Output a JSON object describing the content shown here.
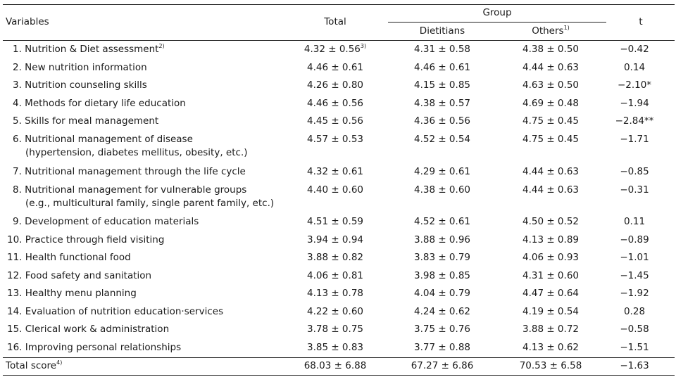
{
  "header": {
    "variables": "Variables",
    "total": "Total",
    "group": "Group",
    "dietitians": "Dietitians",
    "others": "Others",
    "others_sup": "1)",
    "t": "t"
  },
  "rows": [
    {
      "label": "1. Nutrition & Diet assessment",
      "label_sup": "2)",
      "label2": "",
      "total": "4.32 ± 0.56",
      "total_sup": "3)",
      "diet": "4.31 ± 0.58",
      "others": "4.38 ± 0.50",
      "t": "−0.42"
    },
    {
      "label": "2. New nutrition information",
      "label_sup": "",
      "label2": "",
      "total": "4.46 ± 0.61",
      "total_sup": "",
      "diet": "4.46 ± 0.61",
      "others": "4.44 ± 0.63",
      "t": "0.14"
    },
    {
      "label": "3. Nutrition counseling skills",
      "label_sup": "",
      "label2": "",
      "total": "4.26 ± 0.80",
      "total_sup": "",
      "diet": "4.15 ± 0.85",
      "others": "4.63 ± 0.50",
      "t": "−2.10*"
    },
    {
      "label": "4. Methods for dietary life education",
      "label_sup": "",
      "label2": "",
      "total": "4.46 ± 0.56",
      "total_sup": "",
      "diet": "4.38 ± 0.57",
      "others": "4.69 ± 0.48",
      "t": "−1.94"
    },
    {
      "label": "5. Skills for meal management",
      "label_sup": "",
      "label2": "",
      "total": "4.45 ± 0.56",
      "total_sup": "",
      "diet": "4.36 ± 0.56",
      "others": "4.75 ± 0.45",
      "t": "−2.84**"
    },
    {
      "label": "6. Nutritional management of disease",
      "label_sup": "",
      "label2": "(hypertension, diabetes mellitus, obesity, etc.)",
      "total": "4.57 ± 0.53",
      "total_sup": "",
      "diet": "4.52 ± 0.54",
      "others": "4.75 ± 0.45",
      "t": "−1.71"
    },
    {
      "label": "7. Nutritional management through the life cycle",
      "label_sup": "",
      "label2": "",
      "total": "4.32 ± 0.61",
      "total_sup": "",
      "diet": "4.29 ± 0.61",
      "others": "4.44 ± 0.63",
      "t": "−0.85"
    },
    {
      "label": "8. Nutritional management for vulnerable groups",
      "label_sup": "",
      "label2": "(e.g., multicultural family, single parent family, etc.)",
      "total": "4.40 ± 0.60",
      "total_sup": "",
      "diet": "4.38 ± 0.60",
      "others": "4.44 ± 0.63",
      "t": "−0.31"
    },
    {
      "label": "9. Development of education materials",
      "label_sup": "",
      "label2": "",
      "total": "4.51 ± 0.59",
      "total_sup": "",
      "diet": "4.52 ± 0.61",
      "others": "4.50 ± 0.52",
      "t": "0.11"
    },
    {
      "label": "10. Practice through field visiting",
      "label_sup": "",
      "label2": "",
      "total": "3.94 ± 0.94",
      "total_sup": "",
      "diet": "3.88 ± 0.96",
      "others": "4.13 ± 0.89",
      "t": "−0.89"
    },
    {
      "label": "11. Health functional food",
      "label_sup": "",
      "label2": "",
      "total": "3.88 ± 0.82",
      "total_sup": "",
      "diet": "3.83 ± 0.79",
      "others": "4.06 ± 0.93",
      "t": "−1.01"
    },
    {
      "label": "12. Food safety and sanitation",
      "label_sup": "",
      "label2": "",
      "total": "4.06 ± 0.81",
      "total_sup": "",
      "diet": "3.98 ± 0.85",
      "others": "4.31 ± 0.60",
      "t": "−1.45"
    },
    {
      "label": "13. Healthy menu planning",
      "label_sup": "",
      "label2": "",
      "total": "4.13 ± 0.78",
      "total_sup": "",
      "diet": "4.04 ± 0.79",
      "others": "4.47 ± 0.64",
      "t": "−1.92"
    },
    {
      "label": "14. Evaluation of nutrition education·services",
      "label_sup": "",
      "label2": "",
      "total": "4.22 ± 0.60",
      "total_sup": "",
      "diet": "4.24 ± 0.62",
      "others": "4.19 ± 0.54",
      "t": "0.28"
    },
    {
      "label": "15. Clerical work & administration",
      "label_sup": "",
      "label2": "",
      "total": "3.78 ± 0.75",
      "total_sup": "",
      "diet": "3.75 ± 0.76",
      "others": "3.88 ± 0.72",
      "t": "−0.58"
    },
    {
      "label": "16. Improving personal relationships",
      "label_sup": "",
      "label2": "",
      "total": "3.85 ± 0.83",
      "total_sup": "",
      "diet": "3.77 ± 0.88",
      "others": "4.13 ± 0.62",
      "t": "−1.51"
    }
  ],
  "total_row": {
    "label": "Total score",
    "label_sup": "4)",
    "total": "68.03 ± 6.88",
    "diet": "67.27 ± 6.86",
    "others": "70.53 ± 6.58",
    "t": "−1.63"
  }
}
